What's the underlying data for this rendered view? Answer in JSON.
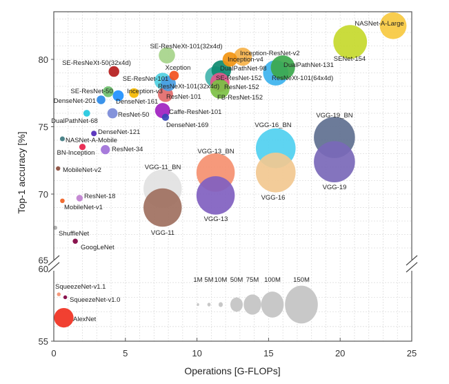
{
  "chart_data": {
    "type": "scatter",
    "xlabel": "Operations [G-FLOPs]",
    "ylabel": "Top-1 accuracy [%]",
    "xlim": [
      0,
      25
    ],
    "ylim_upper": [
      65,
      83
    ],
    "ylim_lower": [
      55,
      60
    ],
    "y_axis_break": true,
    "grid": true,
    "xticks": [
      "0",
      "5",
      "10",
      "15",
      "20",
      "25"
    ],
    "yticks_upper": [
      "65",
      "70",
      "75",
      "80"
    ],
    "yticks_lower": [
      "55",
      "60"
    ],
    "size_legend": {
      "placement": "bottom-right",
      "labels": [
        "1M",
        "5M",
        "10M",
        "50M",
        "75M",
        "100M",
        "150M"
      ],
      "values": [
        1,
        5,
        10,
        50,
        75,
        100,
        150
      ],
      "color": "#c8c8c8"
    },
    "points": [
      {
        "name": "NASNet-A-Large",
        "gflops": 23.7,
        "acc": 82.5,
        "params_m": 88.9,
        "color": "#f7c940"
      },
      {
        "name": "SENet-154",
        "gflops": 20.7,
        "acc": 81.3,
        "params_m": 115.1,
        "color": "#c6d92c"
      },
      {
        "name": "Inception-ResNet-v2",
        "gflops": 13.2,
        "acc": 80.2,
        "params_m": 55.8,
        "color": "#f6b24a"
      },
      {
        "name": "Inception-v4",
        "gflops": 12.3,
        "acc": 80.0,
        "params_m": 42.7,
        "color": "#f29410"
      },
      {
        "name": "DualPathNet-131",
        "gflops": 16.0,
        "acc": 79.4,
        "params_m": 79.3,
        "color": "#3ca84c"
      },
      {
        "name": "ResNeXt-101(64x4d)",
        "gflops": 15.5,
        "acc": 79.0,
        "params_m": 83.5,
        "color": "#3db3ee"
      },
      {
        "name": "DualPathNet-98",
        "gflops": 11.7,
        "acc": 79.2,
        "params_m": 61.6,
        "color": "#0e8a70"
      },
      {
        "name": "SE-ResNet-152",
        "gflops": 11.3,
        "acc": 78.7,
        "params_m": 66.8,
        "color": "#44b4ae"
      },
      {
        "name": "ResNet-152",
        "gflops": 11.6,
        "acc": 78.3,
        "params_m": 60.2,
        "color": "#e2588c"
      },
      {
        "name": "FB-ResNet-152",
        "gflops": 11.6,
        "acc": 77.8,
        "params_m": 60.2,
        "color": "#7cc044"
      },
      {
        "name": "SE-ResNeXt-101(32x4d)",
        "gflops": 7.9,
        "acc": 80.3,
        "params_m": 49.0,
        "color": "#a6d48a"
      },
      {
        "name": "Xception",
        "gflops": 8.4,
        "acc": 78.8,
        "params_m": 22.9,
        "color": "#f2501e"
      },
      {
        "name": "SE-ResNet-101",
        "gflops": 7.6,
        "acc": 78.4,
        "params_m": 49.3,
        "color": "#4fd0e2"
      },
      {
        "name": "ResNeXt-101(32x4d)",
        "gflops": 8.0,
        "acc": 78.2,
        "params_m": 44.2,
        "color": "#4a9de2"
      },
      {
        "name": "ResNet-101",
        "gflops": 7.8,
        "acc": 77.4,
        "params_m": 44.6,
        "color": "#e26a6a"
      },
      {
        "name": "Caffe-ResNet-101",
        "gflops": 7.6,
        "acc": 76.2,
        "params_m": 44.6,
        "color": "#a020c0"
      },
      {
        "name": "DenseNet-169",
        "gflops": 7.8,
        "acc": 75.7,
        "params_m": 14.1,
        "color": "#3646b6"
      },
      {
        "name": "Inception-v3",
        "gflops": 5.6,
        "acc": 77.5,
        "params_m": 23.8,
        "color": "#f5b800"
      },
      {
        "name": "DenseNet-161",
        "gflops": 4.5,
        "acc": 77.3,
        "params_m": 28.7,
        "color": "#1e90ff"
      },
      {
        "name": "SE-ResNet-50",
        "gflops": 3.8,
        "acc": 77.6,
        "params_m": 28.1,
        "color": "#6cbf6c"
      },
      {
        "name": "DenseNet-201",
        "gflops": 3.3,
        "acc": 77.0,
        "params_m": 20.0,
        "color": "#2a8ae8"
      },
      {
        "name": "SE-ResNeXt-50(32x4d)",
        "gflops": 4.2,
        "acc": 79.1,
        "params_m": 27.6,
        "color": "#b51c1c"
      },
      {
        "name": "ResNet-50",
        "gflops": 4.1,
        "acc": 76.0,
        "params_m": 25.6,
        "color": "#7a8ad8"
      },
      {
        "name": "DualPathNet-68",
        "gflops": 2.3,
        "acc": 76.0,
        "params_m": 12.6,
        "color": "#22c8e0"
      },
      {
        "name": "DenseNet-121",
        "gflops": 2.8,
        "acc": 74.5,
        "params_m": 8.0,
        "color": "#5028b8"
      },
      {
        "name": "NASNet-A-Mobile",
        "gflops": 0.6,
        "acc": 74.1,
        "params_m": 5.3,
        "color": "#3e7a80"
      },
      {
        "name": "BN-Inception",
        "gflops": 2.0,
        "acc": 73.5,
        "params_m": 11.3,
        "color": "#e8204a"
      },
      {
        "name": "ResNet-34",
        "gflops": 3.6,
        "acc": 73.3,
        "params_m": 21.8,
        "color": "#a070d8"
      },
      {
        "name": "MobileNet-v2",
        "gflops": 0.3,
        "acc": 71.9,
        "params_m": 3.5,
        "color": "#8a4a3a"
      },
      {
        "name": "ResNet-18",
        "gflops": 1.8,
        "acc": 69.7,
        "params_m": 11.7,
        "color": "#c080d0"
      },
      {
        "name": "MobileNet-v1",
        "gflops": 0.6,
        "acc": 69.5,
        "params_m": 4.2,
        "color": "#f06020"
      },
      {
        "name": "ShuffleNet",
        "gflops": 0.1,
        "acc": 67.5,
        "params_m": 2.4,
        "color": "#aaaaaa"
      },
      {
        "name": "GoogLeNet",
        "gflops": 1.5,
        "acc": 66.5,
        "params_m": 6.6,
        "color": "#800040"
      },
      {
        "name": "VGG-11_BN",
        "gflops": 7.6,
        "acc": 70.4,
        "params_m": 132.9,
        "color": "#e2e2e2"
      },
      {
        "name": "VGG-11",
        "gflops": 7.6,
        "acc": 69.0,
        "params_m": 132.9,
        "color": "#a07060"
      },
      {
        "name": "VGG-13_BN",
        "gflops": 11.3,
        "acc": 71.6,
        "params_m": 133.0,
        "color": "#f59070"
      },
      {
        "name": "VGG-13",
        "gflops": 11.3,
        "acc": 69.9,
        "params_m": 133.0,
        "color": "#8060c0"
      },
      {
        "name": "VGG-16_BN",
        "gflops": 15.5,
        "acc": 73.4,
        "params_m": 138.4,
        "color": "#50d0f0"
      },
      {
        "name": "VGG-16",
        "gflops": 15.5,
        "acc": 71.6,
        "params_m": 138.4,
        "color": "#f2c890"
      },
      {
        "name": "VGG-19_BN",
        "gflops": 19.6,
        "acc": 74.2,
        "params_m": 143.7,
        "color": "#607090"
      },
      {
        "name": "VGG-19",
        "gflops": 19.6,
        "acc": 72.4,
        "params_m": 143.7,
        "color": "#7a68b8"
      },
      {
        "name": "SqueezeNet-v1.1",
        "gflops": 0.35,
        "acc": 58.2,
        "params_m": 1.2,
        "color": "#f59070"
      },
      {
        "name": "SqueezeNet-v1.0",
        "gflops": 0.8,
        "acc": 58.0,
        "params_m": 1.2,
        "color": "#800040"
      },
      {
        "name": "AlexNet",
        "gflops": 0.7,
        "acc": 56.6,
        "params_m": 61.1,
        "color": "#f03020"
      }
    ]
  }
}
